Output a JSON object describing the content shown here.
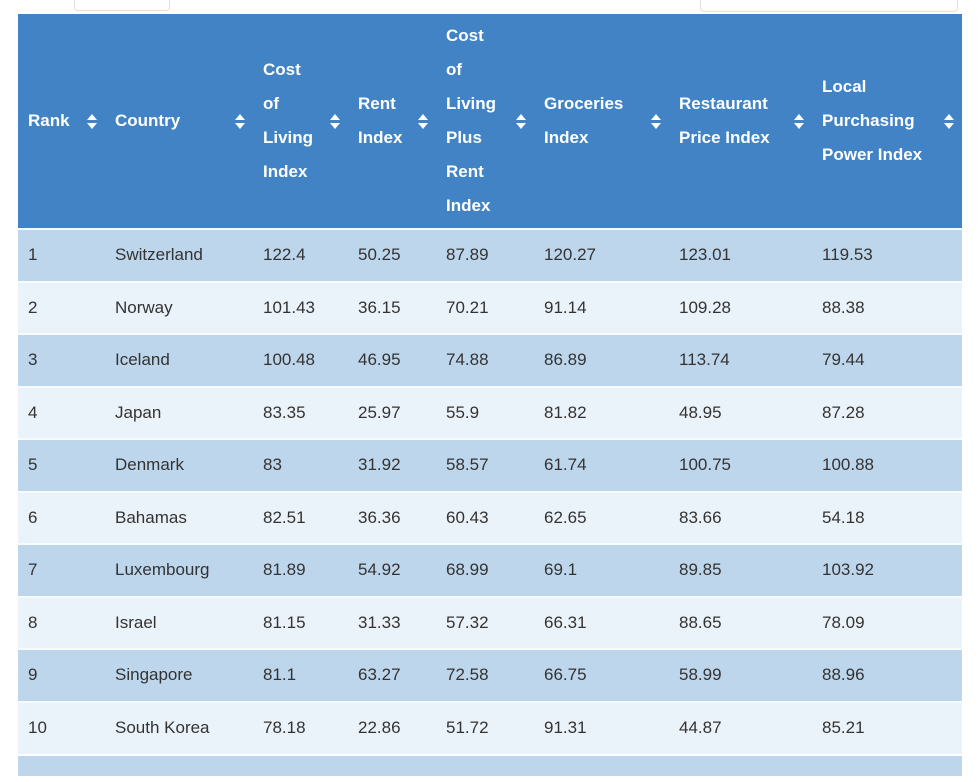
{
  "controls": {
    "entries_select": {
      "value": ""
    },
    "search_input": {
      "value": "",
      "placeholder": ""
    }
  },
  "table": {
    "columns": [
      {
        "label": "Rank",
        "sort_icon": "sort-updown-icon"
      },
      {
        "label": "Country",
        "sort_icon": "sort-updown-icon"
      },
      {
        "label": "Cost of Living Index",
        "sort_icon": "sort-updown-icon"
      },
      {
        "label": "Rent Index",
        "sort_icon": "sort-updown-icon"
      },
      {
        "label": "Cost of Living Plus Rent Index",
        "sort_icon": "sort-updown-icon"
      },
      {
        "label": "Groceries Index",
        "sort_icon": "sort-updown-icon"
      },
      {
        "label": "Restaurant Price Index",
        "sort_icon": "sort-updown-icon"
      },
      {
        "label": "Local Purchasing Power Index",
        "sort_icon": "sort-updown-icon"
      }
    ],
    "rows": [
      [
        "1",
        "Switzerland",
        "122.4",
        "50.25",
        "87.89",
        "120.27",
        "123.01",
        "119.53"
      ],
      [
        "2",
        "Norway",
        "101.43",
        "36.15",
        "70.21",
        "91.14",
        "109.28",
        "88.38"
      ],
      [
        "3",
        "Iceland",
        "100.48",
        "46.95",
        "74.88",
        "86.89",
        "113.74",
        "79.44"
      ],
      [
        "4",
        "Japan",
        "83.35",
        "25.97",
        "55.9",
        "81.82",
        "48.95",
        "87.28"
      ],
      [
        "5",
        "Denmark",
        "83",
        "31.92",
        "58.57",
        "61.74",
        "100.75",
        "100.88"
      ],
      [
        "6",
        "Bahamas",
        "82.51",
        "36.36",
        "60.43",
        "62.65",
        "83.66",
        "54.18"
      ],
      [
        "7",
        "Luxembourg",
        "81.89",
        "54.92",
        "68.99",
        "69.1",
        "89.85",
        "103.92"
      ],
      [
        "8",
        "Israel",
        "81.15",
        "31.33",
        "57.32",
        "66.31",
        "88.65",
        "78.09"
      ],
      [
        "9",
        "Singapore",
        "81.1",
        "63.27",
        "72.58",
        "66.75",
        "58.99",
        "88.96"
      ],
      [
        "10",
        "South Korea",
        "78.18",
        "22.86",
        "51.72",
        "91.31",
        "44.87",
        "85.21"
      ]
    ],
    "colors": {
      "header_bg": "#4183c5",
      "header_text": "#ffffff",
      "row_odd": "#bdd6ec",
      "row_even": "#ebf3fa",
      "separator": "#f8fbfe",
      "cell_text": "#333333",
      "control_border": "#e0e0e0",
      "page_bg": "#ffffff"
    }
  }
}
